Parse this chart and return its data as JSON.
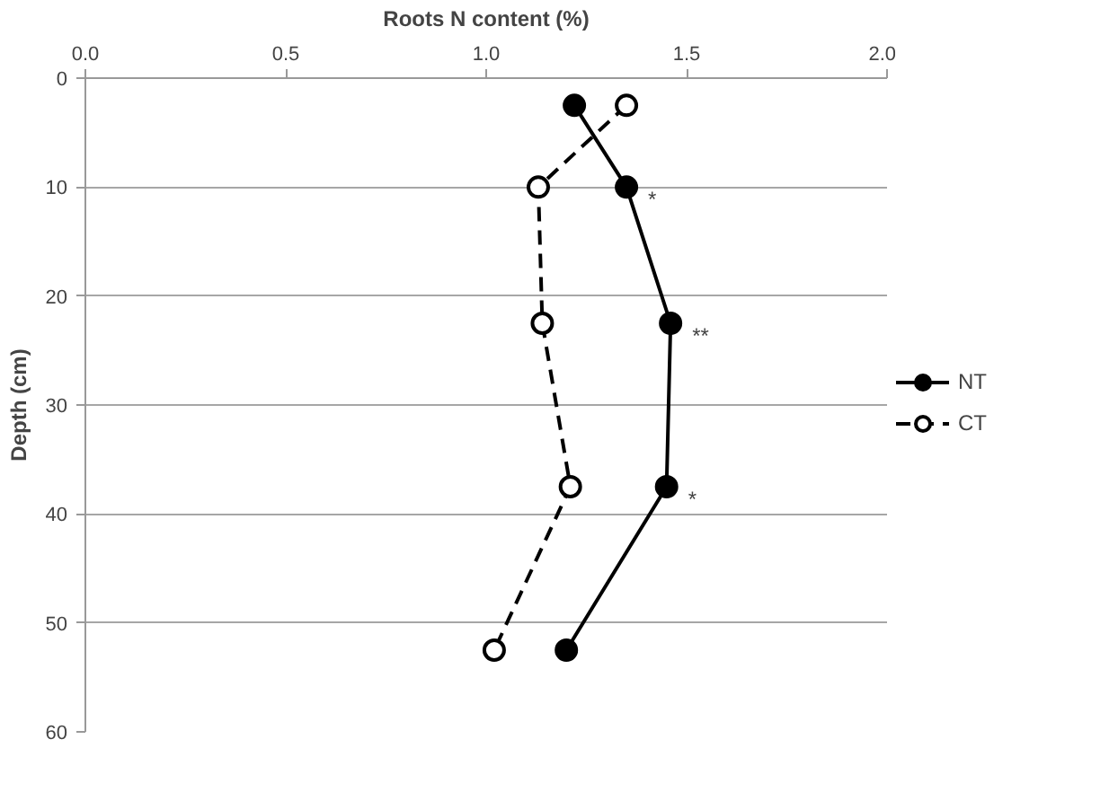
{
  "chart_data": {
    "type": "line",
    "xlabel": "Roots N content (%)",
    "ylabel": "Depth (cm)",
    "xlim": [
      0,
      2
    ],
    "xticks": [
      {
        "value": 0,
        "label": "0.0"
      },
      {
        "value": 0.5,
        "label": "0.5"
      },
      {
        "value": 1,
        "label": "1.0"
      },
      {
        "value": 1.5,
        "label": "1.5"
      },
      {
        "value": 2,
        "label": "2.0"
      }
    ],
    "ylim": [
      60,
      0
    ],
    "yticks": [
      0,
      10,
      20,
      30,
      40,
      50,
      60
    ],
    "grid": "y",
    "legend": "right",
    "marker": "circle",
    "series": [
      {
        "name": "NT",
        "color": "#000000",
        "line_style": "solid",
        "x": [
          1.22,
          1.35,
          1.46,
          1.45,
          1.2
        ],
        "values": [
          2.5,
          10,
          22.5,
          37.5,
          52.5
        ]
      },
      {
        "name": "CT",
        "color": "#000000",
        "line_style": "dashed",
        "x": [
          1.35,
          1.13,
          1.14,
          1.21,
          1.02
        ],
        "values": [
          2.5,
          10,
          22.5,
          37.5,
          52.5
        ]
      }
    ],
    "annotations": [
      {
        "text": "*",
        "x": 1.35,
        "y": 10
      },
      {
        "text": "**",
        "x": 1.46,
        "y": 22.5
      },
      {
        "text": "*",
        "x": 1.45,
        "y": 37.5
      }
    ]
  }
}
